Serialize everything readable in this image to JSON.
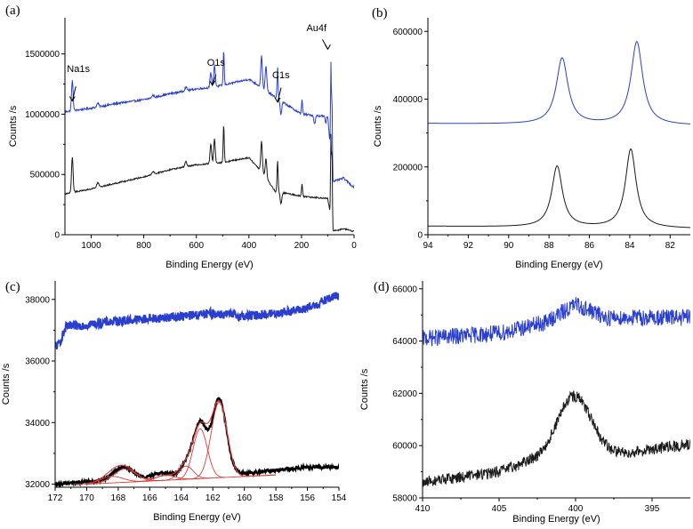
{
  "figure": {
    "colors": {
      "top_trace": "#2a3fcf",
      "bottom_trace": "#1a1a1a",
      "fit": "#e03a3a",
      "axis": "#000000"
    }
  },
  "chart_data": [
    {
      "id": "a",
      "panel_label": "(a)",
      "type": "line",
      "xlabel": "Binding Energy (eV)",
      "ylabel": "Counts /s",
      "xlim": [
        1100,
        0
      ],
      "ylim": [
        0,
        1800000
      ],
      "xticks": [
        1000,
        800,
        600,
        400,
        200,
        0
      ],
      "xtick_labels": [
        "1000",
        "800",
        "600",
        "400",
        "200",
        "0"
      ],
      "yticks": [
        0,
        500000,
        1000000,
        1500000
      ],
      "ytick_labels": [
        "0",
        "500000",
        "1000000",
        "1500000"
      ],
      "series": [
        {
          "name": "top",
          "color": "#2a3fcf",
          "base": [
            [
              1100,
              1020000
            ],
            [
              1000,
              1050000
            ],
            [
              900,
              1090000
            ],
            [
              800,
              1120000
            ],
            [
              700,
              1170000
            ],
            [
              600,
              1210000
            ],
            [
              550,
              1220000
            ],
            [
              500,
              1240000
            ],
            [
              400,
              1290000
            ],
            [
              350,
              1220000
            ],
            [
              300,
              1140000
            ],
            [
              200,
              1000000
            ],
            [
              100,
              980000
            ],
            [
              80,
              440000
            ],
            [
              40,
              470000
            ],
            [
              5,
              400000
            ]
          ],
          "peaks": [
            [
              1072,
              250000,
              3
            ],
            [
              975,
              30000,
              4
            ],
            [
              765,
              20000,
              4
            ],
            [
              640,
              30000,
              4
            ],
            [
              545,
              120000,
              3
            ],
            [
              531,
              180000,
              3
            ],
            [
              496,
              280000,
              2
            ],
            [
              352,
              260000,
              3
            ],
            [
              335,
              200000,
              3
            ],
            [
              291,
              260000,
              2
            ],
            [
              278,
              -110000,
              3
            ],
            [
              198,
              120000,
              2
            ],
            [
              150,
              -70000,
              3
            ],
            [
              108,
              -60000,
              2
            ],
            [
              88,
              760000,
              1.5
            ],
            [
              84,
              580000,
              1.5
            ]
          ],
          "noise": 8000
        },
        {
          "name": "bottom",
          "color": "#1a1a1a",
          "base": [
            [
              1100,
              340000
            ],
            [
              1000,
              380000
            ],
            [
              900,
              430000
            ],
            [
              800,
              480000
            ],
            [
              700,
              540000
            ],
            [
              600,
              580000
            ],
            [
              550,
              590000
            ],
            [
              500,
              600000
            ],
            [
              400,
              640000
            ],
            [
              350,
              520000
            ],
            [
              300,
              360000
            ],
            [
              200,
              320000
            ],
            [
              100,
              300000
            ],
            [
              80,
              30000
            ],
            [
              40,
              50000
            ],
            [
              5,
              30000
            ]
          ],
          "peaks": [
            [
              1072,
              290000,
              3
            ],
            [
              975,
              40000,
              4
            ],
            [
              765,
              25000,
              4
            ],
            [
              640,
              40000,
              4
            ],
            [
              545,
              160000,
              3
            ],
            [
              531,
              200000,
              3
            ],
            [
              496,
              310000,
              2
            ],
            [
              352,
              250000,
              3
            ],
            [
              335,
              160000,
              3
            ],
            [
              291,
              260000,
              2
            ],
            [
              278,
              -100000,
              3
            ],
            [
              198,
              100000,
              2
            ],
            [
              88,
              680000,
              1.5
            ],
            [
              84,
              600000,
              1.5
            ]
          ],
          "noise": 6000
        }
      ],
      "annotations": [
        {
          "label": "Na1s",
          "x": 1072,
          "text_y": 1350000,
          "arrow_from": 1230000,
          "arrow_to": 1110000
        },
        {
          "label": "O1s",
          "x": 539,
          "text_y": 1400000,
          "arrow_from": 1330000,
          "arrow_to": 1240000
        },
        {
          "label": "C1s",
          "x": 291,
          "text_y": 1300000,
          "arrow_from": 1220000,
          "arrow_to": 1100000
        },
        {
          "label": "Au4f",
          "x": 100,
          "text_y": 1690000,
          "arrow_from": 1620000,
          "arrow_to": 1540000
        }
      ]
    },
    {
      "id": "b",
      "panel_label": "(b)",
      "type": "line",
      "xlabel": "Binding Energy (eV)",
      "ylabel": "Counts /s",
      "xlim": [
        94,
        81
      ],
      "ylim": [
        0,
        640000
      ],
      "xticks": [
        94,
        92,
        90,
        88,
        86,
        84,
        82
      ],
      "xtick_labels": [
        "94",
        "92",
        "90",
        "88",
        "86",
        "84",
        "82"
      ],
      "yticks": [
        0,
        200000,
        400000,
        600000
      ],
      "ytick_labels": [
        "0",
        "200000",
        "400000",
        "600000"
      ],
      "series": [
        {
          "name": "top",
          "color": "#2a3fcf",
          "base": [
            [
              94,
              328000
            ],
            [
              81,
              322000
            ]
          ],
          "peaks": [
            [
              87.35,
              195000,
              0.35,
              "l"
            ],
            [
              83.65,
              245000,
              0.35,
              "l"
            ]
          ],
          "noise": 0
        },
        {
          "name": "bottom",
          "color": "#1a1a1a",
          "base": [
            [
              94,
              25000
            ],
            [
              81,
              18000
            ]
          ],
          "peaks": [
            [
              87.6,
              180000,
              0.32,
              "l"
            ],
            [
              83.95,
              232000,
              0.32,
              "l"
            ]
          ],
          "noise": 0
        }
      ]
    },
    {
      "id": "c",
      "panel_label": "(c)",
      "type": "line",
      "xlabel": "Binding Energy (eV)",
      "ylabel": "Counts /s",
      "xlim": [
        172,
        154
      ],
      "ylim": [
        31900,
        38600
      ],
      "xticks": [
        172,
        170,
        168,
        166,
        164,
        162,
        160,
        158,
        156,
        154
      ],
      "xtick_labels": [
        "172",
        "170",
        "168",
        "166",
        "164",
        "162",
        "160",
        "158",
        "156",
        "154"
      ],
      "yticks": [
        32000,
        34000,
        36000,
        38000
      ],
      "ytick_labels": [
        "32000",
        "34000",
        "36000",
        "38000"
      ],
      "series": [
        {
          "name": "top",
          "color": "#2a3fcf",
          "width": 2,
          "base": [
            [
              171.8,
              36500
            ],
            [
              171.3,
              37100
            ],
            [
              168,
              37300
            ],
            [
              164,
              37450
            ],
            [
              162,
              37550
            ],
            [
              160,
              37450
            ],
            [
              158,
              37550
            ],
            [
              156,
              37700
            ],
            [
              154.3,
              38100
            ]
          ],
          "peaks": [],
          "noise": 150
        },
        {
          "name": "bottom",
          "color": "#000000",
          "width": 2,
          "base": [
            [
              172,
              32000
            ],
            [
              166,
              32200
            ],
            [
              160,
              32350
            ],
            [
              156,
              32550
            ],
            [
              154,
              32550
            ]
          ],
          "peaks": [
            [
              167.7,
              420,
              0.6
            ],
            [
              165.2,
              150,
              0.5
            ],
            [
              163.6,
              450,
              0.4
            ],
            [
              162.8,
              1650,
              0.4
            ],
            [
              161.6,
              2450,
              0.45
            ]
          ],
          "noise": 60
        }
      ],
      "fit_components": [
        {
          "center": 168.4,
          "height": 210,
          "width": 0.7
        },
        {
          "center": 167.6,
          "height": 430,
          "width": 0.7
        },
        {
          "center": 165.0,
          "height": 160,
          "width": 0.6
        },
        {
          "center": 163.7,
          "height": 430,
          "width": 0.45
        },
        {
          "center": 162.8,
          "height": 1620,
          "width": 0.45
        },
        {
          "center": 161.6,
          "height": 2450,
          "width": 0.5
        }
      ],
      "fit_baseline": [
        [
          170,
          32000
        ],
        [
          158,
          32300
        ]
      ]
    },
    {
      "id": "d",
      "panel_label": "(d)",
      "type": "line",
      "xlabel": "Binding Energy (eV)",
      "ylabel": "Counts /s",
      "xlim": [
        410,
        392.5
      ],
      "ylim": [
        58000,
        66300
      ],
      "xticks": [
        410,
        405,
        400,
        395
      ],
      "xtick_labels": [
        "410",
        "405",
        "400",
        "395"
      ],
      "yticks": [
        58000,
        60000,
        62000,
        64000,
        66000
      ],
      "ytick_labels": [
        "58000",
        "60000",
        "62000",
        "64000",
        "66000"
      ],
      "series": [
        {
          "name": "top",
          "color": "#2a3fcf",
          "width": 1,
          "base": [
            [
              410,
              64100
            ],
            [
              405,
              64300
            ],
            [
              402,
              64700
            ],
            [
              400,
              65400
            ],
            [
              398,
              64900
            ],
            [
              395,
              64900
            ],
            [
              392.5,
              64900
            ]
          ],
          "peaks": [],
          "noise": 320
        },
        {
          "name": "bottom",
          "color": "#1a1a1a",
          "width": 1,
          "base": [
            [
              410,
              58600
            ],
            [
              405,
              59000
            ],
            [
              403,
              59400
            ],
            [
              397,
              59700
            ],
            [
              392.5,
              60050
            ]
          ],
          "peaks": [
            [
              400.1,
              2350,
              1.1
            ]
          ],
          "noise": 220
        }
      ]
    }
  ]
}
